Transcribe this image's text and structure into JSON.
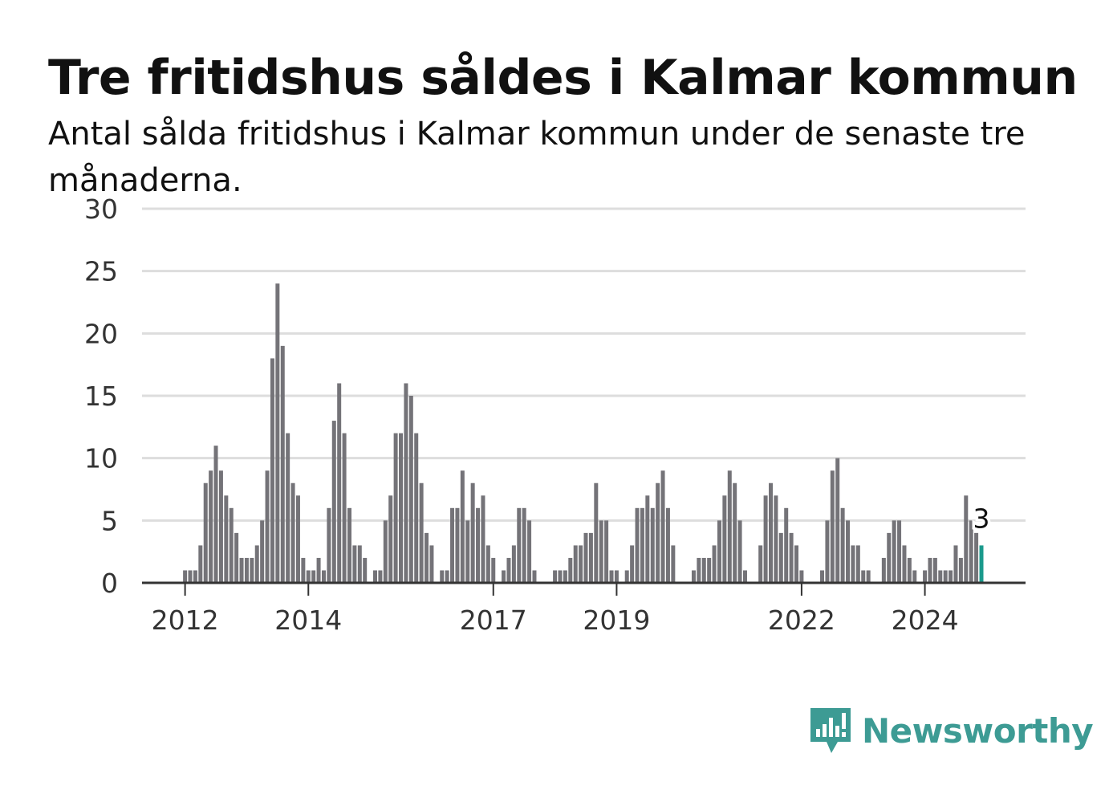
{
  "colors": {
    "bar": "#747378",
    "highlight": "#1a9a8c",
    "grid": "#dddddd",
    "axis": "#333333",
    "brand": "#3d9b94"
  },
  "brand": {
    "name": "Newsworthy",
    "icon": "newsworthy-logo-icon"
  },
  "chart_data": {
    "type": "bar",
    "title": "Tre fritidshus såldes i Kalmar kommun",
    "subtitle": "Antal sålda fritidshus i Kalmar kommun under de senaste tre månaderna.",
    "xlabel": "",
    "ylabel": "",
    "ylim": [
      0,
      30
    ],
    "yticks": [
      "0",
      "5",
      "10",
      "15",
      "20",
      "25",
      "30"
    ],
    "grid": true,
    "legend": "none",
    "x_start": "2011-09",
    "x_end": "2025-02",
    "frequency": "monthly",
    "xticks": [
      {
        "label": "2012",
        "date": "2012-01"
      },
      {
        "label": "2014",
        "date": "2014-01"
      },
      {
        "label": "2017",
        "date": "2017-01"
      },
      {
        "label": "2019",
        "date": "2019-01"
      },
      {
        "label": "2022",
        "date": "2022-01"
      },
      {
        "label": "2024",
        "date": "2024-01"
      }
    ],
    "values": [
      0,
      0,
      0,
      0,
      1,
      1,
      1,
      3,
      8,
      9,
      11,
      9,
      7,
      6,
      4,
      2,
      2,
      2,
      3,
      5,
      9,
      18,
      24,
      19,
      12,
      8,
      7,
      2,
      1,
      1,
      2,
      1,
      6,
      13,
      16,
      12,
      6,
      3,
      3,
      2,
      0,
      1,
      1,
      5,
      7,
      12,
      12,
      16,
      15,
      12,
      8,
      4,
      3,
      0,
      1,
      1,
      6,
      6,
      9,
      5,
      8,
      6,
      7,
      3,
      2,
      0,
      1,
      2,
      3,
      6,
      6,
      5,
      1,
      0,
      0,
      0,
      1,
      1,
      1,
      2,
      3,
      3,
      4,
      4,
      8,
      5,
      5,
      1,
      1,
      0,
      1,
      3,
      6,
      6,
      7,
      6,
      8,
      9,
      6,
      3,
      0,
      0,
      0,
      1,
      2,
      2,
      2,
      3,
      5,
      7,
      9,
      8,
      5,
      1,
      0,
      0,
      3,
      7,
      8,
      7,
      4,
      6,
      4,
      3,
      1,
      0,
      0,
      0,
      1,
      5,
      9,
      10,
      6,
      5,
      3,
      3,
      1,
      1,
      0,
      0,
      2,
      4,
      5,
      5,
      3,
      2,
      1,
      0,
      1,
      2,
      2,
      1,
      1,
      1,
      3,
      2,
      7,
      5,
      4,
      3
    ],
    "highlight_last": 1,
    "last_value_label": "3"
  }
}
